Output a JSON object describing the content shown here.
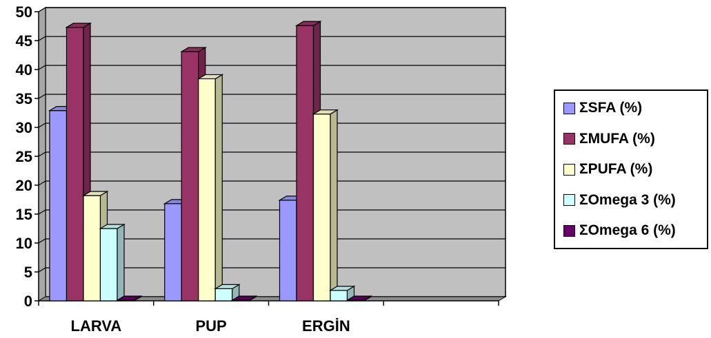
{
  "chart_data": {
    "type": "bar",
    "categories": [
      "LARVA",
      "PUP",
      "ERGİN",
      ""
    ],
    "series": [
      {
        "name": "ΣSFA (%)",
        "values": [
          32.9,
          16.8,
          17.4,
          null
        ],
        "color": "#9999FF"
      },
      {
        "name": "ΣMUFA (%)",
        "values": [
          47.3,
          43.1,
          47.6,
          null
        ],
        "color": "#993366"
      },
      {
        "name": "ΣPUFA (%)",
        "values": [
          18.2,
          38.4,
          32.3,
          null
        ],
        "color": "#FFFFCC"
      },
      {
        "name": "ΣOmega 3 (%)",
        "values": [
          12.5,
          2.1,
          1.8,
          null
        ],
        "color": "#CCFFFF"
      },
      {
        "name": "ΣOmega 6 (%)",
        "values": [
          0.1,
          0.1,
          0.1,
          null
        ],
        "color": "#660066"
      }
    ],
    "yticks": [
      "0",
      "5",
      "10",
      "15",
      "20",
      "25",
      "30",
      "35",
      "40",
      "45",
      "50"
    ],
    "ylim": [
      0,
      50
    ],
    "grid": true,
    "legend_position": "right",
    "plot_background": "#C0C0C0"
  }
}
